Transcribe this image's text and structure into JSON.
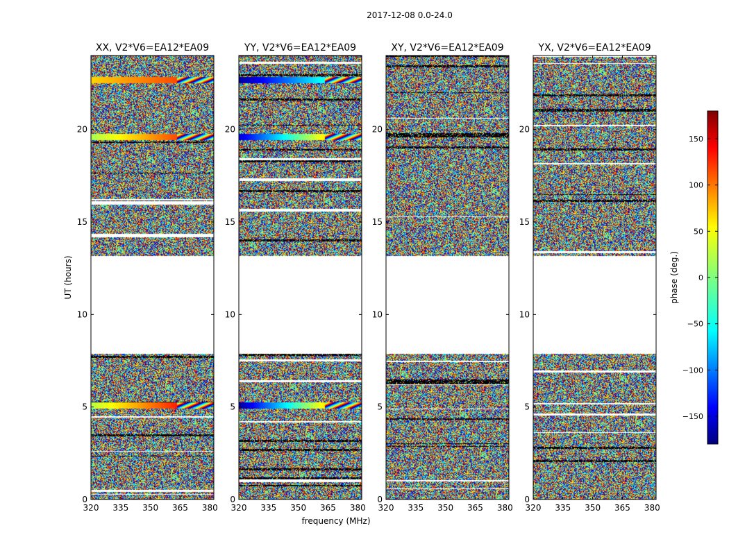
{
  "chart_data": {
    "type": "heatmap",
    "suptitle": "2017-12-08 0.0-24.0",
    "xlabel": "frequency (MHz)",
    "ylabel": "UT (hours)",
    "colorbar_label": "phase (deg.)",
    "colormap": "jet",
    "colorbar_ticks": [
      150,
      100,
      50,
      0,
      -50,
      -100,
      -150
    ],
    "colorbar_tick_labels": [
      "150",
      "100",
      "50",
      "0",
      "−50",
      "−100",
      "−150"
    ],
    "clim": [
      -180,
      180
    ],
    "xlim": [
      320,
      382
    ],
    "ylim": [
      0,
      24
    ],
    "xticks": [
      320,
      335,
      350,
      365,
      380
    ],
    "xtick_labels": [
      "320",
      "335",
      "350",
      "365",
      "380"
    ],
    "yticks": [
      0,
      5,
      10,
      15,
      20
    ],
    "ytick_labels": [
      "0",
      "5",
      "10",
      "15",
      "20"
    ],
    "data_gaps_hours": [
      [
        7.9,
        13.2
      ]
    ],
    "panels": [
      {
        "title": "XX, V2*V6=EA12*EA09",
        "notable_rows": [
          {
            "ut": 5.1,
            "phase_start": 20,
            "phase_end": 170
          },
          {
            "ut": 19.6,
            "phase_start": 15,
            "phase_end": 150
          },
          {
            "ut": 22.7,
            "phase_start": 60,
            "phase_end": 130
          }
        ]
      },
      {
        "title": "YY, V2*V6=EA12*EA09",
        "notable_rows": [
          {
            "ut": 5.1,
            "phase_start": -170,
            "phase_end": 150
          },
          {
            "ut": 19.6,
            "phase_start": -150,
            "phase_end": 140
          },
          {
            "ut": 22.7,
            "phase_start": -170,
            "phase_end": 20
          }
        ]
      },
      {
        "title": "XY, V2*V6=EA12*EA09",
        "notable_rows": []
      },
      {
        "title": "YX, V2*V6=EA12*EA09",
        "notable_rows": []
      }
    ]
  }
}
